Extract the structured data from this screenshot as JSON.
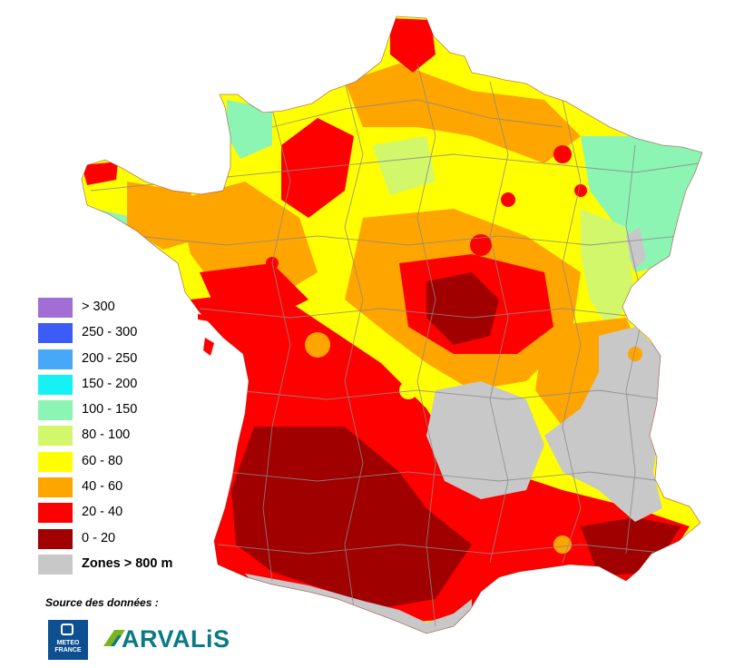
{
  "legend": {
    "items": [
      {
        "label": "> 300",
        "color": "#a36ed4"
      },
      {
        "label": "250 - 300",
        "color": "#3b5cf6"
      },
      {
        "label": "200 - 250",
        "color": "#46a8f7"
      },
      {
        "label": "150 - 200",
        "color": "#16f1f6"
      },
      {
        "label": "100 - 150",
        "color": "#8cf5b4"
      },
      {
        "label": "80 - 100",
        "color": "#d2f76a"
      },
      {
        "label": "60 - 80",
        "color": "#ffff00"
      },
      {
        "label": "40 - 60",
        "color": "#ffa500"
      },
      {
        "label": "20 - 40",
        "color": "#ff0000"
      },
      {
        "label": "0 - 20",
        "color": "#a00000"
      },
      {
        "label": "Zones > 800 m",
        "color": "#c8c8c8"
      }
    ]
  },
  "source": {
    "label": "Source des données :"
  },
  "logos": {
    "meteo_line1": "METEO",
    "meteo_line2": "FRANCE",
    "arvalis": "ARVALiS"
  },
  "colors": {
    "meteo_blue": "#0d4f91",
    "arvalis_teal": "#0a7a86",
    "arvalis_green": "#7ab51d",
    "mountain_gray": "#c8c8c8",
    "department_lines": "#8a8a8a"
  }
}
